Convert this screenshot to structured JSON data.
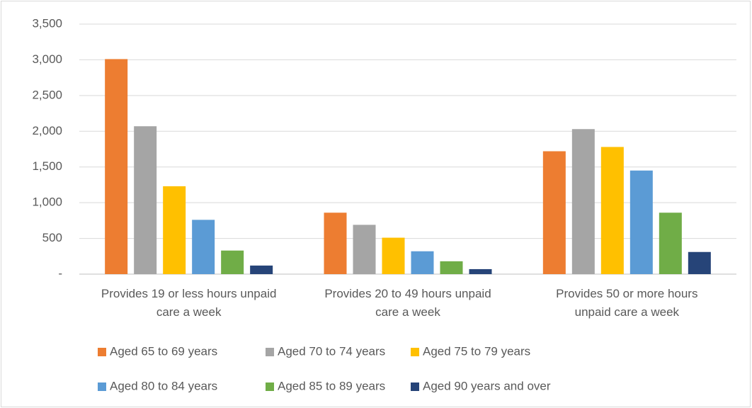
{
  "chart_data": {
    "type": "bar",
    "categories": [
      "Provides 19 or less hours unpaid care a week",
      "Provides 20 to 49 hours unpaid care a week",
      "Provides 50 or more hours unpaid care a week"
    ],
    "series": [
      {
        "name": "Aged 65 to 69 years",
        "color": "#ed7d31",
        "values": [
          3010,
          860,
          1720
        ]
      },
      {
        "name": "Aged 70 to 74 years",
        "color": "#a5a5a5",
        "values": [
          2070,
          690,
          2030
        ]
      },
      {
        "name": "Aged 75 to 79 years",
        "color": "#ffc000",
        "values": [
          1230,
          510,
          1780
        ]
      },
      {
        "name": "Aged 80 to 84 years",
        "color": "#5b9bd5",
        "values": [
          760,
          320,
          1450
        ]
      },
      {
        "name": "Aged 85 to 89 years",
        "color": "#70ad47",
        "values": [
          330,
          180,
          860
        ]
      },
      {
        "name": "Aged 90 years and over",
        "color": "#264478",
        "values": [
          120,
          70,
          310
        ]
      }
    ],
    "ylim": [
      0,
      3500
    ],
    "yticks": [
      {
        "value": 0,
        "label": "-"
      },
      {
        "value": 500,
        "label": "500"
      },
      {
        "value": 1000,
        "label": "1,000"
      },
      {
        "value": 1500,
        "label": "1,500"
      },
      {
        "value": 2000,
        "label": "2,000"
      },
      {
        "value": 2500,
        "label": "2,500"
      },
      {
        "value": 3000,
        "label": "3,000"
      },
      {
        "value": 3500,
        "label": "3,500"
      }
    ],
    "grid": true,
    "legend": "bottom"
  }
}
